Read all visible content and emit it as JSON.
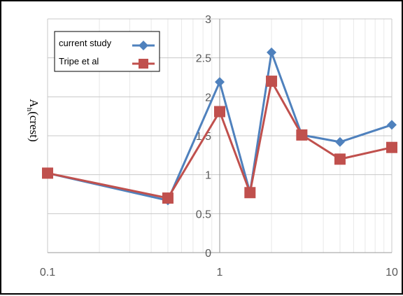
{
  "chart_data": {
    "type": "line",
    "x_scale": "log",
    "xlim": [
      0.1,
      10
    ],
    "ylim": [
      0,
      3
    ],
    "x_ticks": [
      0.1,
      1,
      10
    ],
    "x_tick_labels": [
      "0.1",
      "1",
      "10"
    ],
    "y_ticks": [
      0,
      0.5,
      1,
      1.5,
      2,
      2.5,
      3
    ],
    "y_tick_labels": [
      "0",
      "0.5",
      "1",
      "1.5",
      "2",
      "2.5",
      "3"
    ],
    "ylabel_main": "A",
    "ylabel_sub": "h",
    "ylabel_rest": "(crest)",
    "grid": true,
    "legend_position": "top-left",
    "series": [
      {
        "name": "current study",
        "color": "#4f81bd",
        "marker": "diamond",
        "x": [
          0.1,
          0.5,
          1,
          1.5,
          2,
          3,
          5,
          10
        ],
        "y": [
          1.02,
          0.67,
          2.19,
          0.77,
          2.57,
          1.51,
          1.42,
          1.64
        ]
      },
      {
        "name": "Tripe et al",
        "color": "#c0504d",
        "marker": "square",
        "x": [
          0.1,
          0.5,
          1,
          1.5,
          2,
          3,
          5,
          10
        ],
        "y": [
          1.02,
          0.7,
          1.81,
          0.77,
          2.2,
          1.51,
          1.2,
          1.35
        ]
      }
    ]
  }
}
